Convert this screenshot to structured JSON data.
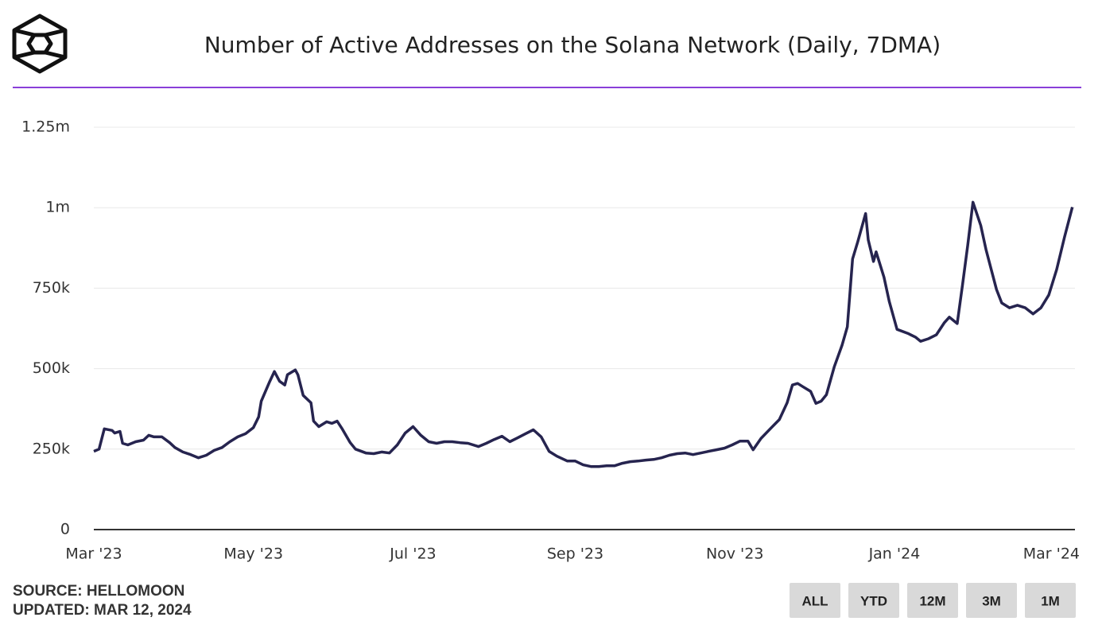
{
  "chart_data": {
    "type": "line",
    "title": "Number of Active Addresses on the Solana Network (Daily, 7DMA)",
    "x": [
      0,
      2,
      4,
      7,
      8,
      10,
      11,
      13,
      16,
      19,
      21,
      23,
      26,
      29,
      31,
      34,
      37,
      40,
      43,
      46,
      49,
      52,
      55,
      58,
      61,
      63,
      64,
      67,
      69,
      71,
      73,
      74,
      77,
      78,
      80,
      83,
      84,
      86,
      89,
      91,
      93,
      95,
      98,
      100,
      104,
      107,
      110,
      113,
      116,
      119,
      122,
      125,
      128,
      131,
      134,
      137,
      140,
      143,
      147,
      150,
      153,
      156,
      159,
      162,
      165,
      168,
      171,
      174,
      177,
      181,
      184,
      187,
      190,
      193,
      196,
      199,
      202,
      205,
      208,
      211,
      214,
      217,
      220,
      223,
      226,
      229,
      232,
      235,
      238,
      241,
      244,
      247,
      250,
      252,
      255,
      259,
      262,
      265,
      267,
      269,
      271,
      274,
      276,
      278,
      280,
      283,
      286,
      288,
      290,
      292,
      295,
      296,
      298,
      299,
      302,
      304,
      307,
      311,
      314,
      316,
      319,
      322,
      325,
      327,
      330,
      332,
      334,
      336,
      339,
      341,
      343,
      345,
      347,
      350,
      353,
      356,
      359,
      362,
      365,
      368,
      371,
      374
    ],
    "series": [
      {
        "name": "Active Addresses",
        "color": "#26244f",
        "values": [
          243000,
          250000,
          313000,
          308000,
          300000,
          305000,
          268000,
          263000,
          273000,
          278000,
          293000,
          288000,
          288000,
          270000,
          255000,
          241000,
          233000,
          223000,
          231000,
          246000,
          255000,
          273000,
          288000,
          298000,
          317000,
          350000,
          399000,
          456000,
          491000,
          461000,
          449000,
          481000,
          496000,
          481000,
          417000,
          394000,
          337000,
          320000,
          335000,
          330000,
          337000,
          312000,
          270000,
          250000,
          238000,
          236000,
          241000,
          238000,
          263000,
          300000,
          320000,
          293000,
          273000,
          268000,
          273000,
          273000,
          270000,
          268000,
          258000,
          268000,
          280000,
          290000,
          273000,
          285000,
          298000,
          310000,
          288000,
          243000,
          228000,
          213000,
          213000,
          201000,
          196000,
          196000,
          198000,
          198000,
          206000,
          211000,
          213000,
          216000,
          218000,
          223000,
          231000,
          236000,
          238000,
          233000,
          238000,
          243000,
          248000,
          253000,
          263000,
          275000,
          275000,
          248000,
          283000,
          317000,
          342000,
          394000,
          449000,
          454000,
          444000,
          429000,
          392000,
          399000,
          419000,
          506000,
          573000,
          630000,
          841000,
          895000,
          982000,
          900000,
          833000,
          863000,
          784000,
          709000,
          622000,
          610000,
          598000,
          585000,
          593000,
          605000,
          642000,
          660000,
          640000,
          759000,
          883000,
          1017000,
          945000,
          870000,
          808000,
          746000,
          704000,
          689000,
          697000,
          689000,
          670000,
          689000,
          729000,
          808000,
          908000,
          1002000
        ]
      }
    ],
    "xlim": [
      0,
      375
    ],
    "xticks": [
      {
        "value": 0,
        "label": "Mar '23"
      },
      {
        "value": 61,
        "label": "May '23"
      },
      {
        "value": 122,
        "label": "Jul '23"
      },
      {
        "value": 184,
        "label": "Sep '23"
      },
      {
        "value": 245,
        "label": "Nov '23"
      },
      {
        "value": 306,
        "label": "Jan '24"
      },
      {
        "value": 366,
        "label": "Mar '24"
      }
    ],
    "ylim": [
      0,
      1250000
    ],
    "yticks": [
      0,
      {
        "value": 250000,
        "label": "250k"
      },
      {
        "value": 500000,
        "label": "500k"
      },
      {
        "value": 750000,
        "label": "750k"
      },
      {
        "value": 1000000,
        "label": "1m"
      },
      {
        "value": 1250000,
        "label": "1.25m"
      }
    ],
    "grid": true
  },
  "footer": {
    "source": "SOURCE: HELLOMOON",
    "updated": "UPDATED: MAR 12, 2024"
  },
  "range_buttons": [
    "ALL",
    "YTD",
    "12M",
    "3M",
    "1M"
  ]
}
